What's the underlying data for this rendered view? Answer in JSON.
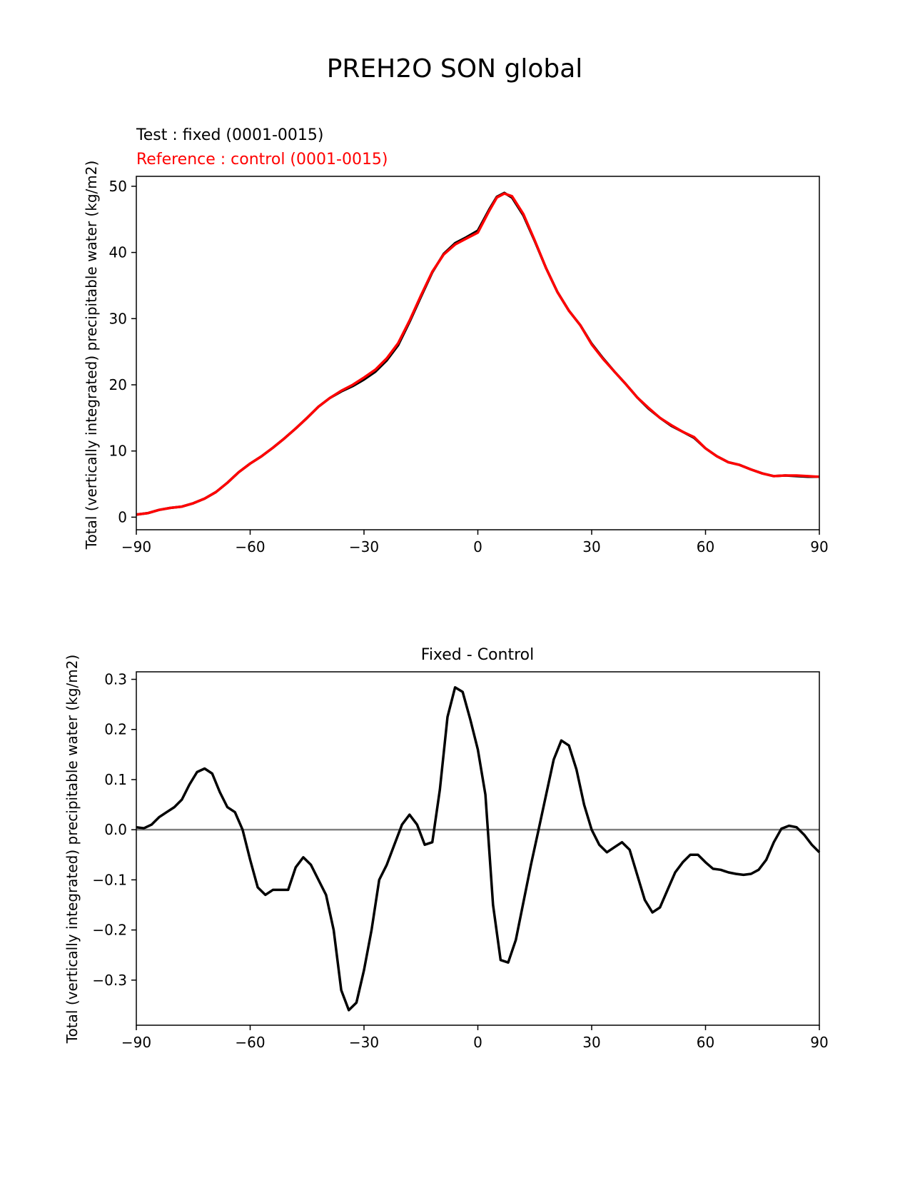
{
  "figure": {
    "title": "PREH2O SON global"
  },
  "colors": {
    "test": "#000000",
    "reference": "#ff0000",
    "zero_line": "#808080"
  },
  "chart_data": [
    {
      "type": "line",
      "test_label": "Test : fixed (0001-0015)",
      "reference_label": "Reference : control (0001-0015)",
      "title": "",
      "ylabel": "Total (vertically integrated) precipitable water (kg/m2)",
      "xlabel": "",
      "xlim": [
        -90,
        90
      ],
      "ylim": [
        -1.9,
        51.5
      ],
      "xticks": [
        -90,
        -60,
        -30,
        0,
        30,
        60,
        90
      ],
      "xtick_labels": [
        "−90",
        "−60",
        "−30",
        "0",
        "30",
        "60",
        "90"
      ],
      "yticks": [
        0,
        10,
        20,
        30,
        40,
        50
      ],
      "ytick_labels": [
        "0",
        "10",
        "20",
        "30",
        "40",
        "50"
      ],
      "grid": false,
      "x": [
        -90,
        -87,
        -84,
        -81,
        -78,
        -75,
        -72,
        -69,
        -66,
        -63,
        -60,
        -57,
        -54,
        -51,
        -48,
        -45,
        -42,
        -39,
        -36,
        -33,
        -30,
        -27,
        -24,
        -21,
        -18,
        -15,
        -12,
        -9,
        -6,
        -3,
        0,
        3,
        5,
        7,
        9,
        12,
        15,
        18,
        21,
        24,
        27,
        30,
        33,
        36,
        39,
        42,
        45,
        48,
        51,
        54,
        57,
        60,
        63,
        66,
        69,
        72,
        75,
        78,
        81,
        84,
        87,
        90
      ],
      "series": [
        {
          "role": "test",
          "values": [
            0.4,
            0.6,
            1.1,
            1.4,
            1.6,
            2.1,
            2.8,
            3.8,
            5.2,
            6.8,
            8.1,
            9.2,
            10.5,
            11.9,
            13.4,
            15.0,
            16.7,
            18.0,
            19.0,
            19.8,
            20.8,
            22.0,
            23.7,
            26.0,
            29.5,
            33.3,
            37.0,
            39.8,
            41.4,
            42.3,
            43.3,
            46.5,
            48.4,
            49.0,
            48.3,
            45.6,
            41.7,
            37.6,
            34.0,
            31.2,
            29.0,
            26.2,
            24.0,
            22.0,
            20.1,
            18.1,
            16.4,
            15.0,
            13.8,
            12.9,
            12.0,
            10.4,
            9.2,
            8.3,
            7.9,
            7.2,
            6.6,
            6.2,
            6.3,
            6.2,
            6.1,
            6.1
          ]
        },
        {
          "role": "reference",
          "values": [
            0.4,
            0.6,
            1.1,
            1.4,
            1.6,
            2.1,
            2.8,
            3.8,
            5.2,
            6.8,
            8.1,
            9.2,
            10.5,
            11.9,
            13.4,
            15.0,
            16.7,
            18.0,
            19.1,
            20.0,
            21.1,
            22.3,
            24.0,
            26.3,
            29.7,
            33.5,
            37.1,
            39.7,
            41.2,
            42.1,
            43.0,
            46.3,
            48.3,
            48.9,
            48.5,
            45.8,
            41.8,
            37.6,
            34.0,
            31.2,
            29.0,
            26.1,
            23.9,
            22.0,
            20.1,
            18.1,
            16.5,
            15.0,
            13.9,
            12.9,
            12.1,
            10.4,
            9.2,
            8.3,
            7.9,
            7.2,
            6.6,
            6.2,
            6.3,
            6.3,
            6.2,
            6.1
          ]
        }
      ]
    },
    {
      "type": "line",
      "title": "Fixed - Control",
      "ylabel": "Total (vertically integrated) precipitable water (kg/m2)",
      "xlabel": "",
      "xlim": [
        -90,
        90
      ],
      "ylim": [
        -0.39,
        0.315
      ],
      "xticks": [
        -90,
        -60,
        -30,
        0,
        30,
        60,
        90
      ],
      "xtick_labels": [
        "−90",
        "−60",
        "−30",
        "0",
        "30",
        "60",
        "90"
      ],
      "yticks": [
        -0.3,
        -0.2,
        -0.1,
        0.0,
        0.1,
        0.2,
        0.3
      ],
      "ytick_labels": [
        "−0.3",
        "−0.2",
        "−0.1",
        "0.0",
        "0.1",
        "0.2",
        "0.3"
      ],
      "zero_line": 0,
      "grid": false,
      "x": [
        -90,
        -88,
        -86,
        -84,
        -82,
        -80,
        -78,
        -76,
        -74,
        -72,
        -70,
        -68,
        -66,
        -64,
        -62,
        -60,
        -58,
        -56,
        -54,
        -52,
        -50,
        -48,
        -46,
        -44,
        -42,
        -40,
        -38,
        -36,
        -34,
        -32,
        -30,
        -28,
        -26,
        -24,
        -22,
        -20,
        -18,
        -16,
        -14,
        -12,
        -10,
        -8,
        -6,
        -4,
        -2,
        0,
        2,
        4,
        6,
        8,
        10,
        12,
        14,
        16,
        18,
        20,
        22,
        24,
        26,
        28,
        30,
        32,
        34,
        36,
        38,
        40,
        42,
        44,
        46,
        48,
        50,
        52,
        54,
        56,
        58,
        60,
        62,
        64,
        66,
        68,
        70,
        72,
        74,
        76,
        78,
        80,
        82,
        84,
        86,
        88,
        90
      ],
      "values": [
        0.005,
        0.003,
        0.01,
        0.025,
        0.035,
        0.045,
        0.06,
        0.09,
        0.115,
        0.122,
        0.112,
        0.075,
        0.045,
        0.035,
        0.0,
        -0.06,
        -0.115,
        -0.13,
        -0.12,
        -0.12,
        -0.12,
        -0.075,
        -0.055,
        -0.07,
        -0.1,
        -0.13,
        -0.2,
        -0.32,
        -0.36,
        -0.345,
        -0.28,
        -0.2,
        -0.1,
        -0.07,
        -0.03,
        0.01,
        0.03,
        0.01,
        -0.03,
        -0.025,
        0.08,
        0.225,
        0.284,
        0.275,
        0.22,
        0.16,
        0.07,
        -0.15,
        -0.26,
        -0.265,
        -0.22,
        -0.145,
        -0.07,
        0.0,
        0.07,
        0.14,
        0.178,
        0.168,
        0.12,
        0.05,
        0.0,
        -0.03,
        -0.045,
        -0.035,
        -0.025,
        -0.04,
        -0.09,
        -0.14,
        -0.165,
        -0.155,
        -0.12,
        -0.085,
        -0.065,
        -0.05,
        -0.05,
        -0.065,
        -0.078,
        -0.08,
        -0.085,
        -0.088,
        -0.09,
        -0.088,
        -0.08,
        -0.06,
        -0.025,
        0.002,
        0.008,
        0.005,
        -0.01,
        -0.03,
        -0.045
      ]
    }
  ]
}
